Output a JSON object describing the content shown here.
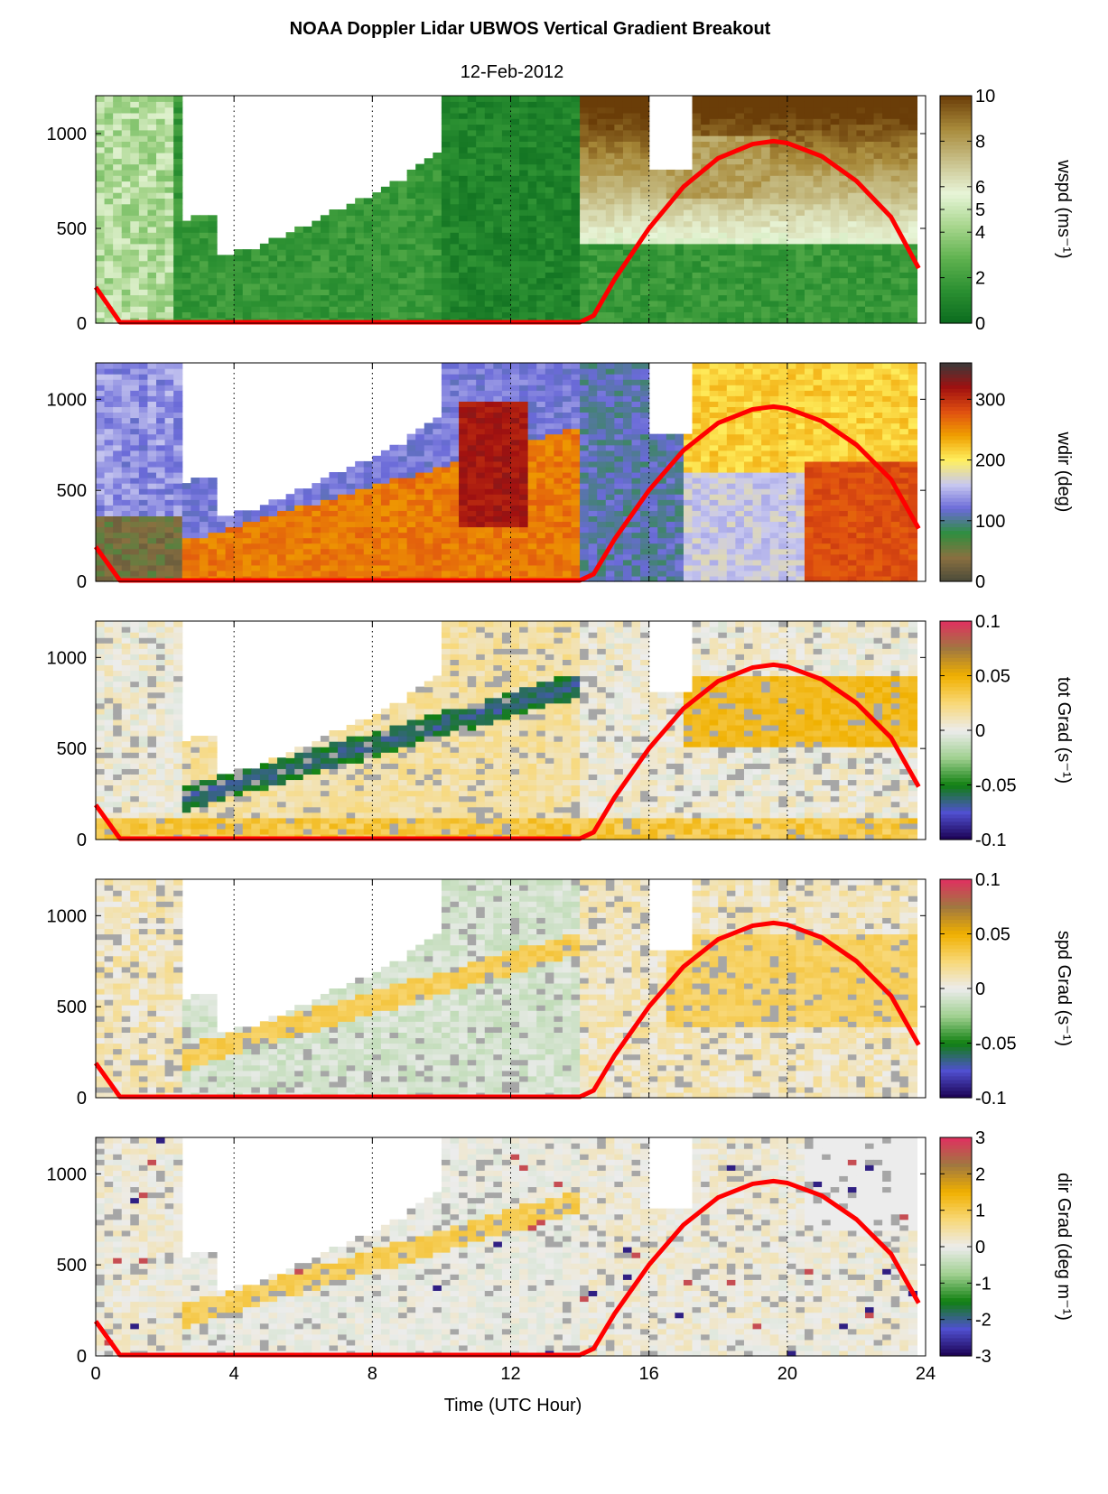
{
  "figure": {
    "title": "NOAA Doppler Lidar  UBWOS  Vertical Gradient Breakout",
    "subtitle": "12-Feb-2012",
    "xlabel": "Time (UTC Hour)"
  },
  "colors": {
    "sun_curve": "#ff0000",
    "missing": "#ffffff",
    "frame": "#000000"
  },
  "chart_data": [
    {
      "type": "heatmap",
      "variable": "wspd",
      "ylabel": "wspd (ms⁻¹)",
      "x_ticks": [
        0,
        4,
        8,
        12,
        16,
        20,
        24
      ],
      "y_ticks": [
        0,
        500,
        1000
      ],
      "xlim": [
        0,
        24
      ],
      "ylim": [
        0,
        1200
      ],
      "clim": [
        0,
        10
      ],
      "colorbar_ticks": [
        "0",
        "2",
        "4",
        "5",
        "6",
        "8",
        "10"
      ],
      "colormap": [
        "#0b6b1e",
        "#2a8f31",
        "#5fb24f",
        "#a8d68e",
        "#e8f5d8",
        "#c8c08a",
        "#a88a3a",
        "#6a3d08"
      ],
      "vertical_gridlines_x": [
        4,
        8,
        12,
        16,
        20
      ]
    },
    {
      "type": "heatmap",
      "variable": "wdir",
      "ylabel": "wdir (deg)",
      "x_ticks": [
        0,
        4,
        8,
        12,
        16,
        20,
        24
      ],
      "y_ticks": [
        0,
        500,
        1000
      ],
      "xlim": [
        0,
        24
      ],
      "ylim": [
        0,
        1200
      ],
      "clim": [
        0,
        360
      ],
      "colorbar_ticks": [
        "0",
        "100",
        "200",
        "300"
      ],
      "colormap": [
        "#4a4a3a",
        "#8a7040",
        "#2f8f3f",
        "#6a6ad8",
        "#c8c8f0",
        "#fff060",
        "#f0a000",
        "#e05010",
        "#a01010",
        "#3a3a3a"
      ],
      "vertical_gridlines_x": [
        4,
        8,
        12,
        16,
        20
      ]
    },
    {
      "type": "heatmap",
      "variable": "tot Grad",
      "ylabel": "tot Grad (s⁻¹)",
      "x_ticks": [
        0,
        4,
        8,
        12,
        16,
        20,
        24
      ],
      "y_ticks": [
        0,
        500,
        1000
      ],
      "xlim": [
        0,
        24
      ],
      "ylim": [
        0,
        1200
      ],
      "clim": [
        -0.1,
        0.1
      ],
      "colorbar_ticks": [
        "-0.1",
        "-0.05",
        "0",
        "0.05",
        "0.1"
      ],
      "colormap": [
        "#1a0050",
        "#5050d0",
        "#108010",
        "#a0d090",
        "#ececec",
        "#f8d878",
        "#f0b000",
        "#a07840",
        "#e03060"
      ],
      "vertical_gridlines_x": [
        4,
        8,
        12,
        16,
        20
      ]
    },
    {
      "type": "heatmap",
      "variable": "spd Grad",
      "ylabel": "spd Grad (s⁻¹)",
      "x_ticks": [
        0,
        4,
        8,
        12,
        16,
        20,
        24
      ],
      "y_ticks": [
        0,
        500,
        1000
      ],
      "xlim": [
        0,
        24
      ],
      "ylim": [
        0,
        1200
      ],
      "clim": [
        -0.1,
        0.1
      ],
      "colorbar_ticks": [
        "-0.1",
        "-0.05",
        "0",
        "0.05",
        "0.1"
      ],
      "colormap": [
        "#1a0050",
        "#5050d0",
        "#108010",
        "#a0d090",
        "#ececec",
        "#f8d878",
        "#f0b000",
        "#a07840",
        "#e03060"
      ],
      "vertical_gridlines_x": [
        4,
        8,
        12,
        16,
        20
      ]
    },
    {
      "type": "heatmap",
      "variable": "dir Grad",
      "ylabel": "dir Grad (deg m⁻¹)",
      "x_ticks": [
        0,
        4,
        8,
        12,
        16,
        20,
        24
      ],
      "y_ticks": [
        0,
        500,
        1000
      ],
      "xlim": [
        0,
        24
      ],
      "ylim": [
        0,
        1200
      ],
      "clim": [
        -3,
        3
      ],
      "colorbar_ticks": [
        "-3",
        "-2",
        "-1",
        "0",
        "1",
        "2",
        "3"
      ],
      "colormap": [
        "#1a0050",
        "#5050d0",
        "#108010",
        "#a0d090",
        "#ececec",
        "#f8d878",
        "#f0b000",
        "#a07840",
        "#e03060"
      ],
      "vertical_gridlines_x": [
        4,
        8,
        12,
        16,
        20
      ]
    }
  ],
  "sun_curve": {
    "x": [
      0,
      0.7,
      1,
      2,
      4,
      6,
      8,
      10,
      12,
      14,
      14.4,
      15,
      16,
      17,
      18,
      19,
      19.6,
      20,
      21,
      22,
      23,
      23.8
    ],
    "y": [
      190,
      5,
      5,
      5,
      5,
      5,
      5,
      5,
      5,
      5,
      40,
      230,
      500,
      720,
      870,
      945,
      960,
      950,
      880,
      750,
      560,
      290
    ]
  }
}
